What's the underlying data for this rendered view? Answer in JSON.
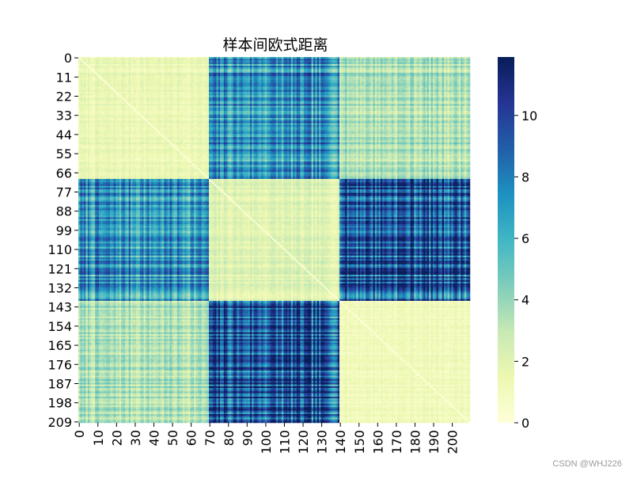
{
  "chart_data": {
    "type": "heatmap",
    "title": "样本间欧式距离",
    "n_samples": 210,
    "blocks": [
      {
        "start": 0,
        "end": 69
      },
      {
        "start": 70,
        "end": 139
      },
      {
        "start": 140,
        "end": 209
      }
    ],
    "mean_distance_between_blocks": [
      [
        1.5,
        7.0,
        3.5
      ],
      [
        7.0,
        2.0,
        9.5
      ],
      [
        3.5,
        9.5,
        1.2
      ]
    ],
    "y_tick_labels": [
      "0",
      "11",
      "22",
      "33",
      "44",
      "55",
      "66",
      "77",
      "88",
      "99",
      "110",
      "121",
      "132",
      "143",
      "154",
      "165",
      "176",
      "187",
      "198",
      "209"
    ],
    "x_tick_labels": [
      "0",
      "10",
      "20",
      "30",
      "40",
      "50",
      "60",
      "70",
      "80",
      "90",
      "100",
      "110",
      "120",
      "130",
      "140",
      "150",
      "160",
      "170",
      "180",
      "190",
      "200"
    ],
    "colorbar": {
      "min": 0,
      "max": 11.9,
      "ticks": [
        "0",
        "2",
        "4",
        "6",
        "8",
        "10"
      ],
      "colormap": "YlGnBu",
      "colors": [
        "#ffffd9",
        "#edf8b1",
        "#c7e9b4",
        "#7fcdbb",
        "#41b6c4",
        "#1d91c0",
        "#225ea8",
        "#253494",
        "#081d58"
      ]
    },
    "xlabel": "",
    "ylabel": ""
  },
  "watermark": "CSDN @WHJ226"
}
